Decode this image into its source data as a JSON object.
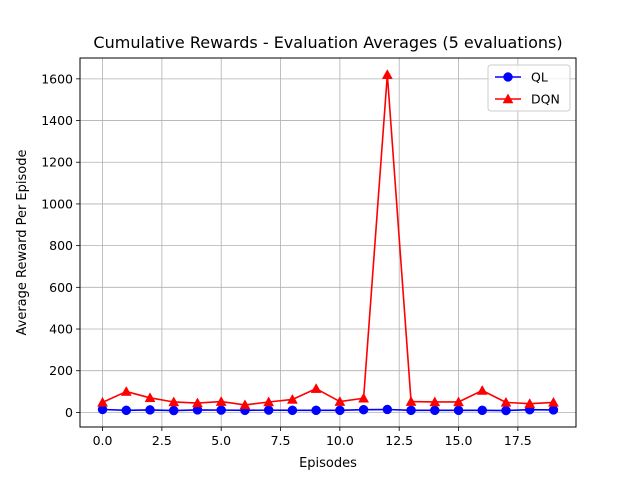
{
  "chart_data": {
    "type": "line",
    "title": "Cumulative Rewards - Evaluation Averages (5 evaluations)",
    "xlabel": "Episodes",
    "ylabel": "Average Reward Per Episode",
    "xlim": [
      -0.95,
      19.95
    ],
    "ylim": [
      -70,
      1700
    ],
    "xticks": [
      0.0,
      2.5,
      5.0,
      7.5,
      10.0,
      12.5,
      15.0,
      17.5
    ],
    "xtick_labels": [
      "0.0",
      "2.5",
      "5.0",
      "7.5",
      "10.0",
      "12.5",
      "15.0",
      "17.5"
    ],
    "yticks": [
      0,
      200,
      400,
      600,
      800,
      1000,
      1200,
      1400,
      1600
    ],
    "ytick_labels": [
      "0",
      "200",
      "400",
      "600",
      "800",
      "1000",
      "1200",
      "1400",
      "1600"
    ],
    "grid": true,
    "legend_position": "upper right",
    "x": [
      0,
      1,
      2,
      3,
      4,
      5,
      6,
      7,
      8,
      9,
      10,
      11,
      12,
      13,
      14,
      15,
      16,
      17,
      18,
      19
    ],
    "series": [
      {
        "name": "QL",
        "color": "#0000ff",
        "marker": "circle",
        "values": [
          14,
          10,
          12,
          9,
          12,
          11,
          10,
          11,
          10,
          10,
          10,
          13,
          14,
          10,
          10,
          10,
          10,
          9,
          13,
          12
        ]
      },
      {
        "name": "DQN",
        "color": "#ff0000",
        "marker": "triangle",
        "values": [
          48,
          100,
          70,
          50,
          45,
          52,
          36,
          50,
          62,
          114,
          52,
          68,
          1620,
          52,
          50,
          50,
          105,
          48,
          42,
          48
        ]
      }
    ]
  }
}
